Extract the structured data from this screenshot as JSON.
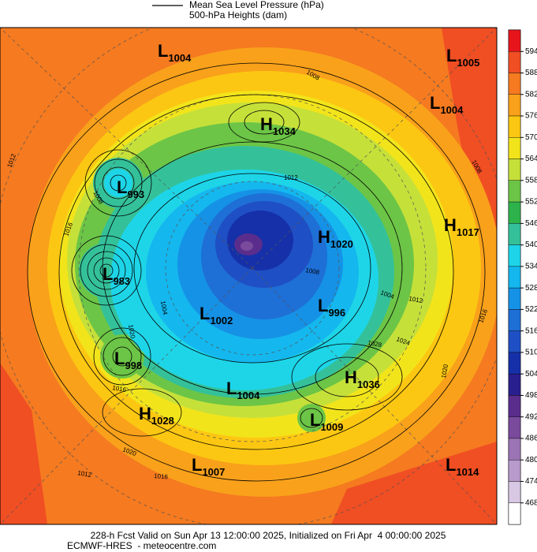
{
  "header": {
    "legend": [
      "Mean Sea Level Pressure (hPa)",
      "500-hPa Heights (dam)"
    ]
  },
  "colorbar": {
    "ticks": [
      "594",
      "588",
      "582",
      "576",
      "570",
      "564",
      "558",
      "552",
      "546",
      "540",
      "534",
      "528",
      "522",
      "516",
      "510",
      "504",
      "498",
      "492",
      "486",
      "480",
      "474",
      "468"
    ],
    "colors": [
      "#e8141c",
      "#f04e23",
      "#f57a20",
      "#f9a11b",
      "#fcc712",
      "#f2e41b",
      "#c6e03a",
      "#6cc546",
      "#2db34b",
      "#34c19a",
      "#1ed5e8",
      "#14b7ee",
      "#1592e6",
      "#1e6fd6",
      "#1f4fc4",
      "#1530a8",
      "#2a1f8f",
      "#5a2d8c",
      "#7a4a9c",
      "#9a74b4",
      "#b89acb",
      "#d8c8e4",
      "#ffffff"
    ]
  },
  "centers": [
    {
      "letter": "L",
      "value": "1004"
    },
    {
      "letter": "L",
      "value": "1005"
    },
    {
      "letter": "H",
      "value": "1034"
    },
    {
      "letter": "L",
      "value": "1004"
    },
    {
      "letter": "L",
      "value": "993"
    },
    {
      "letter": "H",
      "value": "1017"
    },
    {
      "letter": "H",
      "value": "1020"
    },
    {
      "letter": "L",
      "value": "983"
    },
    {
      "letter": "L",
      "value": "1002"
    },
    {
      "letter": "L",
      "value": "996"
    },
    {
      "letter": "H",
      "value": "1036"
    },
    {
      "letter": "L",
      "value": "998"
    },
    {
      "letter": "L",
      "value": "1004"
    },
    {
      "letter": "H",
      "value": "1028"
    },
    {
      "letter": "L",
      "value": "1009"
    },
    {
      "letter": "L",
      "value": "1007"
    },
    {
      "letter": "L",
      "value": "1014"
    }
  ],
  "contour_labels": [
    "1012",
    "1016",
    "1020",
    "1016",
    "1020",
    "1012",
    "1016",
    "1024",
    "1028",
    "1020",
    "1016",
    "1012",
    "1004",
    "1008",
    "1012",
    "1008",
    "1008",
    "1008",
    "1004"
  ],
  "footer": [
    "228-h Fcst Valid on Sun Apr 13 12:00:00 2025, Initialized on Fri Apr  4 00:00:00 2025",
    "ECMWF-HRES  - meteocentre.com"
  ]
}
